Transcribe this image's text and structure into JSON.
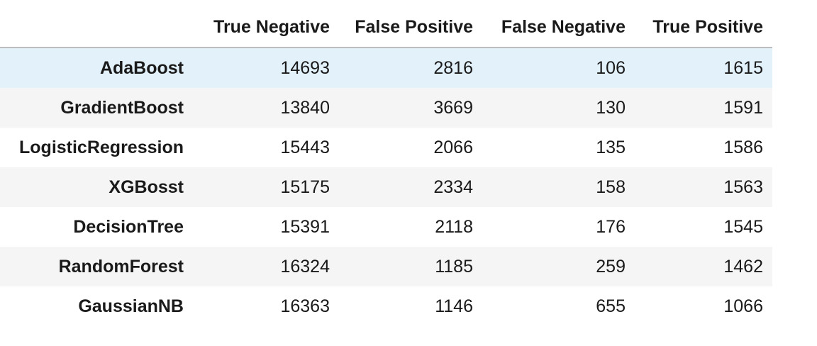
{
  "table": {
    "columns": [
      "",
      "True Negative",
      "False Positive",
      "False Negative",
      "True Positive"
    ],
    "rows": [
      {
        "name": "AdaBoost",
        "values": [
          "14693",
          "2816",
          "106",
          "1615"
        ]
      },
      {
        "name": "GradientBoost",
        "values": [
          "13840",
          "3669",
          "130",
          "1591"
        ]
      },
      {
        "name": "LogisticRegression",
        "values": [
          "15443",
          "2066",
          "135",
          "1586"
        ]
      },
      {
        "name": "XGBosst",
        "values": [
          "15175",
          "2334",
          "158",
          "1563"
        ]
      },
      {
        "name": "DecisionTree",
        "values": [
          "15391",
          "2118",
          "176",
          "1545"
        ]
      },
      {
        "name": "RandomForest",
        "values": [
          "16324",
          "1185",
          "259",
          "1462"
        ]
      },
      {
        "name": "GaussianNB",
        "values": [
          "16363",
          "1146",
          "655",
          "1066"
        ]
      }
    ],
    "highlighted_row": 0
  },
  "colors": {
    "highlight_row": "#e3f1fb",
    "striped_row": "#f5f5f5",
    "header_border": "#bdbdbd"
  }
}
